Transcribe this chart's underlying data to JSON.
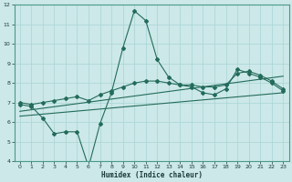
{
  "xlabel": "Humidex (Indice chaleur)",
  "xlim": [
    -0.5,
    23.5
  ],
  "ylim": [
    4,
    12
  ],
  "xticks": [
    0,
    1,
    2,
    3,
    4,
    5,
    6,
    7,
    8,
    9,
    10,
    11,
    12,
    13,
    14,
    15,
    16,
    17,
    18,
    19,
    20,
    21,
    22,
    23
  ],
  "yticks": [
    4,
    5,
    6,
    7,
    8,
    9,
    10,
    11,
    12
  ],
  "bg_color": "#cce8e8",
  "line_color": "#236b5a",
  "grid_color": "#a8d4d4",
  "zigzag_x": [
    0,
    1,
    2,
    3,
    4,
    5,
    6,
    7,
    8,
    9,
    10,
    11,
    12,
    13,
    14,
    15,
    16,
    17,
    18,
    19,
    20,
    21,
    22,
    23
  ],
  "zigzag_y": [
    6.9,
    6.8,
    6.2,
    5.4,
    5.5,
    5.5,
    3.7,
    5.9,
    7.5,
    9.8,
    11.7,
    11.2,
    9.2,
    8.3,
    7.9,
    7.8,
    7.5,
    7.4,
    7.7,
    8.7,
    8.5,
    8.3,
    8.0,
    7.6
  ],
  "smooth_x": [
    0,
    1,
    2,
    3,
    4,
    5,
    6,
    7,
    8,
    9,
    10,
    11,
    12,
    13,
    14,
    15,
    16,
    17,
    18,
    19,
    20,
    21,
    22,
    23
  ],
  "smooth_y": [
    7.0,
    6.9,
    7.0,
    7.1,
    7.2,
    7.3,
    7.1,
    7.4,
    7.6,
    7.8,
    8.0,
    8.1,
    8.1,
    8.0,
    7.9,
    7.9,
    7.8,
    7.8,
    7.9,
    8.5,
    8.6,
    8.4,
    8.1,
    7.7
  ],
  "trend1_x": [
    0,
    23
  ],
  "trend1_y": [
    6.3,
    7.5
  ],
  "trend2_x": [
    0,
    23
  ],
  "trend2_y": [
    6.55,
    8.35
  ]
}
